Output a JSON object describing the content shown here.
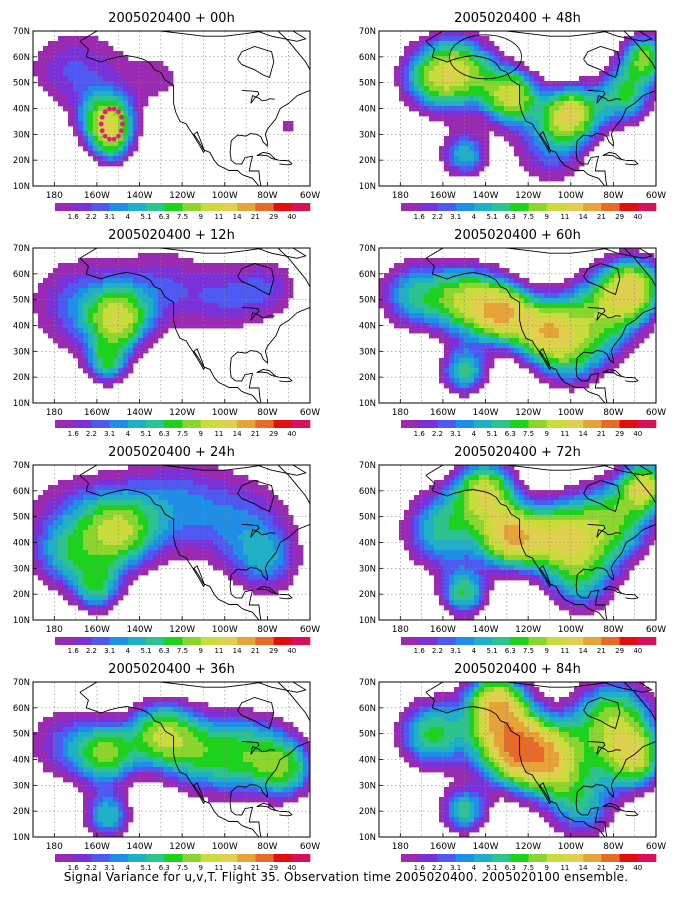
{
  "palette": {
    "levels": [
      "1.6",
      "2.2",
      "3.1",
      "4",
      "5.1",
      "6.3",
      "7.5",
      "9",
      "11",
      "14",
      "21",
      "29",
      "40"
    ],
    "colors": [
      "#9b2ab3",
      "#7a31d8",
      "#4d59f0",
      "#1e8ee6",
      "#1fb0c8",
      "#2cc38f",
      "#1cd21c",
      "#8ad52e",
      "#c9dc3c",
      "#dfd050",
      "#e6a33a",
      "#e86a28",
      "#e40c0c",
      "#d8105c"
    ]
  },
  "axes": {
    "lat_labels": [
      "70N",
      "60N",
      "50N",
      "40N",
      "30N",
      "20N",
      "10N"
    ],
    "lon_labels": [
      "180",
      "160W",
      "140W",
      "120W",
      "100W",
      "80W",
      "60W"
    ],
    "lat_range": [
      10,
      70
    ],
    "lon_range": [
      -190,
      -60
    ]
  },
  "panels": [
    {
      "title": "2005020400  + 00h",
      "hours": 0
    },
    {
      "title": "2005020400  + 48h",
      "hours": 48
    },
    {
      "title": "2005020400  + 12h",
      "hours": 12
    },
    {
      "title": "2005020400  + 60h",
      "hours": 60
    },
    {
      "title": "2005020400  + 24h",
      "hours": 24
    },
    {
      "title": "2005020400  + 72h",
      "hours": 72
    },
    {
      "title": "2005020400  + 36h",
      "hours": 36
    },
    {
      "title": "2005020400  + 84h",
      "hours": 84
    }
  ],
  "caption": "Signal Variance for u,v,T. Flight 35. Observation time 2005020400. 2005020100 ensemble."
}
